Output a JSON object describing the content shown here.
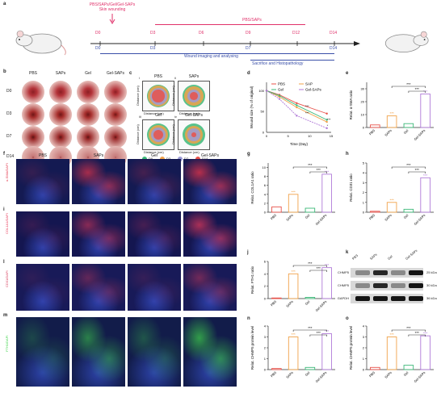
{
  "panels": {
    "a": "a",
    "b": "b",
    "c": "c",
    "d": "d",
    "e": "e",
    "f": "f",
    "g": "g",
    "h": "h",
    "i": "i",
    "j": "j",
    "k": "k",
    "l": "l",
    "m": "m",
    "n": "n",
    "o": "o"
  },
  "timeline": {
    "top_label_1": "PBS/SAPs/Gel/Gel-SAPs",
    "top_label_2": "Skin wounding",
    "pbs_saps": "PBS/SAPs",
    "days_top": [
      "D0",
      "D3",
      "D6",
      "D9",
      "D12",
      "D14"
    ],
    "days_bottom": [
      "D0",
      "D3",
      "D7",
      "D14"
    ],
    "imaging": "Wound imaging and analysing",
    "sacrifice": "Sacrifice and Histopathology"
  },
  "groups": [
    "PBS",
    "SAPs",
    "Gel",
    "Gel-SAPs"
  ],
  "days_rows": [
    "D0",
    "D3",
    "D7",
    "D14"
  ],
  "contour": {
    "titles": [
      "PBS",
      "SAPs",
      "Gel",
      "Gel-SAPs"
    ],
    "sub": [
      "i",
      "ii",
      "iii",
      "iv"
    ],
    "axis_y": "Distance (cm)",
    "axis_x": "Distance (cm)",
    "ticks": [
      "0",
      "0.5",
      "1",
      "1.5"
    ],
    "legend": [
      "D0",
      "D3",
      "D7",
      "D14"
    ],
    "legend_colors": [
      "#3cb878",
      "#f0a24a",
      "#9b9bd6",
      "#e8524a"
    ]
  },
  "stains": {
    "f": "α-SMA/DAPI",
    "i": "COL1A1/DAPI",
    "l": "CD31/DAPI",
    "m": "FTH1/DAPI"
  },
  "western": {
    "lanes": [
      "PBS",
      "SAPs",
      "Gel",
      "Gel-SAPs"
    ],
    "bands": [
      "CHMP5",
      "CHMP5",
      "GAPDH"
    ],
    "kda": [
      "25 kDa",
      "30 kDa",
      "36 kDa"
    ]
  },
  "sig": {
    "s3": "***",
    "s2": "**",
    "s1": "*",
    "ns": "ns"
  },
  "chart_data": [
    {
      "type": "line",
      "panel": "d",
      "xlabel": "Time (Day)",
      "ylabel": "Wound size (% of original)",
      "x": [
        0,
        3,
        7,
        14
      ],
      "xticks": [
        "0",
        "5",
        "10",
        "15"
      ],
      "yticks": [
        "0",
        "50",
        "100"
      ],
      "ylim": [
        0,
        120
      ],
      "series": [
        {
          "name": "PBS",
          "values": [
            100,
            90,
            70,
            45
          ],
          "color": "#e8524a"
        },
        {
          "name": "SAP",
          "values": [
            100,
            85,
            60,
            25
          ],
          "color": "#f0a24a"
        },
        {
          "name": "Gel",
          "values": [
            100,
            88,
            65,
            30
          ],
          "color": "#3cb878"
        },
        {
          "name": "Gel-SAPs",
          "values": [
            100,
            80,
            40,
            10
          ],
          "color": "#b07ad8"
        }
      ]
    },
    {
      "type": "bar",
      "panel": "e",
      "ylabel": "Relat. α-SMA ratio",
      "categories": [
        "PBS",
        "SAPs",
        "Gel",
        "Gel-SAPs"
      ],
      "values": [
        2,
        9,
        3,
        26
      ],
      "ylim": [
        0,
        35
      ],
      "yticks": [
        "0",
        "10",
        "20",
        "30"
      ]
    },
    {
      "type": "bar",
      "panel": "g",
      "ylabel": "Relat. COL1A1 ratio",
      "categories": [
        "PBS",
        "SAPs",
        "Gel",
        "Gel-SAPs"
      ],
      "values": [
        1.2,
        4,
        0.9,
        8.5
      ],
      "ylim": [
        0,
        11
      ],
      "yticks": [
        "0",
        "2",
        "4",
        "6",
        "8",
        "10"
      ]
    },
    {
      "type": "bar",
      "panel": "h",
      "ylabel": "Relat. CD31 ratio",
      "categories": [
        "PBS",
        "SAPs",
        "Gel",
        "Gel-SAPs"
      ],
      "values": [
        0.1,
        1,
        0.3,
        3.5
      ],
      "ylim": [
        0,
        5
      ],
      "yticks": [
        "0",
        "1",
        "2",
        "3",
        "4",
        "5"
      ]
    },
    {
      "type": "bar",
      "panel": "j",
      "ylabel": "Relat. FTH1 ratio",
      "categories": [
        "PBS",
        "SAPs",
        "Gel",
        "Gel-SAPs"
      ],
      "values": [
        0.1,
        4,
        0.2,
        5
      ],
      "ylim": [
        0,
        6
      ],
      "yticks": [
        "0",
        "2",
        "4",
        "6"
      ]
    },
    {
      "type": "bar",
      "panel": "n",
      "ylabel": "Relat. CHMP5 protein level",
      "categories": [
        "PBS",
        "SAPs",
        "Gel",
        "Gel-SAPs"
      ],
      "values": [
        0.1,
        3,
        0.2,
        3.3
      ],
      "ylim": [
        0,
        4
      ],
      "yticks": [
        "0",
        "1",
        "2",
        "3",
        "4"
      ]
    },
    {
      "type": "bar",
      "panel": "o",
      "ylabel": "Relat. CHMP5 protein level",
      "categories": [
        "PBS",
        "SAPs",
        "Gel",
        "Gel-SAPs"
      ],
      "values": [
        0.2,
        3,
        0.4,
        3.1
      ],
      "ylim": [
        0,
        4
      ],
      "yticks": [
        "0",
        "1",
        "2",
        "3",
        "4"
      ]
    }
  ],
  "colors": {
    "PBS": "#e8524a",
    "SAPs": "#f0a24a",
    "Gel": "#3cb878",
    "Gel-SAPs": "#b07ad8"
  }
}
